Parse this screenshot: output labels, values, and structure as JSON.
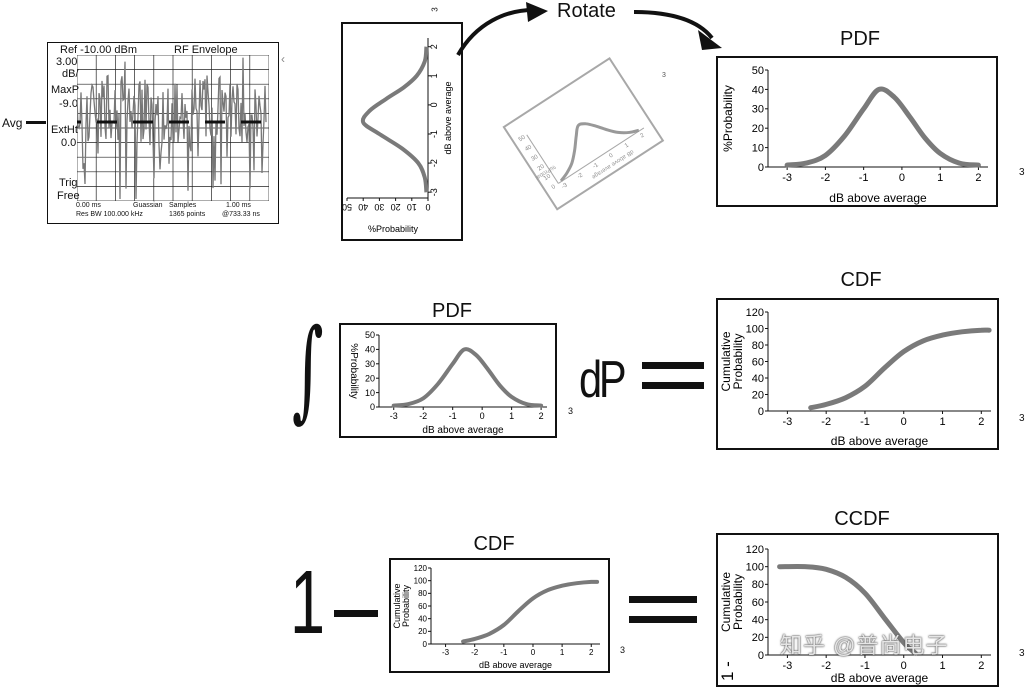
{
  "analyzer": {
    "ref": "Ref -10.00 dBm",
    "mode": "RF Envelope",
    "scale1": "3.00",
    "scale2": "dB/",
    "maxp": "MaxP",
    "maxp_val": "-9.0",
    "extht": "ExtHt",
    "extht_val": "0.0",
    "trig": "Trig",
    "trig_val": "Free",
    "start": "0.00 ms",
    "dist": "Guassian",
    "samples": "Samples",
    "stop": "1.00 ms",
    "rbw": "Res BW 100.000 kHz",
    "points": "1365 points",
    "at": "@733.33 ns",
    "avg_label": "Avg"
  },
  "rotate_label": "Rotate",
  "vertical_plot": {
    "xlabel": "%Probability",
    "ylabel": "dB above average",
    "x_ticks": [
      "50",
      "40",
      "30",
      "20",
      "10",
      "0"
    ],
    "y_ticks": [
      "2",
      "1",
      "0",
      "-1",
      "-2",
      "-3"
    ],
    "corner_tick": "3"
  },
  "rotated_plot": {
    "xlabel": "%Probability",
    "ylabel": "dB above average",
    "x_ticks": [
      "50",
      "40",
      "30",
      "20",
      "10",
      "0"
    ],
    "y_ticks": [
      "-3",
      "-2",
      "-1",
      "0",
      "1",
      "2"
    ],
    "corner_tick": "3"
  },
  "pdf_top": {
    "title": "PDF",
    "ylabel": "%Probability",
    "xlabel": "dB above average",
    "y_ticks": [
      "50",
      "40",
      "30",
      "20",
      "10",
      "0"
    ],
    "x_ticks": [
      "-3",
      "-2",
      "-1",
      "0",
      "1",
      "2"
    ],
    "extra_tick": "3"
  },
  "pdf_mid": {
    "title": "PDF",
    "ylabel": "%Probability",
    "xlabel": "dB above average",
    "y_ticks": [
      "50",
      "40",
      "30",
      "20",
      "10",
      "0"
    ],
    "x_ticks": [
      "-3",
      "-2",
      "-1",
      "0",
      "1",
      "2"
    ],
    "extra_tick": "3"
  },
  "integral_symbol": "∫",
  "dp_label": "dP",
  "cdf_mid": {
    "title": "CDF",
    "ylabel1": "Cumulative",
    "ylabel2": "Probability",
    "xlabel": "dB above average",
    "y_ticks": [
      "120",
      "100",
      "80",
      "60",
      "40",
      "20",
      "0"
    ],
    "x_ticks": [
      "-3",
      "-2",
      "-1",
      "0",
      "1",
      "2"
    ],
    "extra_tick": "3"
  },
  "one_label": "1",
  "minus_label": "−",
  "cdf_bot": {
    "title": "CDF",
    "ylabel1": "Cumulative",
    "ylabel2": "Probability",
    "xlabel": "dB above average",
    "y_ticks": [
      "120",
      "100",
      "80",
      "60",
      "40",
      "20",
      "0"
    ],
    "x_ticks": [
      "-3",
      "-2",
      "-1",
      "0",
      "1",
      "2"
    ],
    "extra_tick": "3"
  },
  "ccdf": {
    "title": "CCDF",
    "ylabel1": "Cumulative",
    "ylabel2": "Probability",
    "ylabel_prefix": "1 -",
    "xlabel": "dB above average",
    "y_ticks": [
      "120",
      "100",
      "80",
      "60",
      "40",
      "20",
      "0"
    ],
    "x_ticks": [
      "-3",
      "-2",
      "-1",
      "0",
      "1",
      "2"
    ],
    "extra_tick": "3"
  },
  "watermark": "知乎 @普尚电子",
  "colors": {
    "curve": "#7a7a7a",
    "frame": "#111111",
    "rotated_frame": "#a8a8a8"
  },
  "chart_data": [
    {
      "type": "line",
      "title": "PDF",
      "xlabel": "dB above average",
      "ylabel": "%Probability",
      "x": [
        -3.0,
        -2.5,
        -2.0,
        -1.5,
        -1.0,
        -0.6,
        -0.2,
        0.2,
        0.6,
        1.0,
        1.5,
        2.0
      ],
      "y": [
        1,
        2,
        6,
        16,
        30,
        40,
        36,
        26,
        15,
        7,
        2,
        1
      ],
      "xlim": [
        -3.5,
        3
      ],
      "ylim": [
        0,
        50
      ]
    },
    {
      "type": "line",
      "title": "CDF",
      "xlabel": "dB above average",
      "ylabel": "Cumulative Probability",
      "x": [
        -2.4,
        -2.0,
        -1.5,
        -1.0,
        -0.5,
        0.0,
        0.5,
        1.0,
        1.5,
        2.0,
        2.2
      ],
      "y": [
        4,
        8,
        16,
        30,
        52,
        72,
        85,
        92,
        96,
        98,
        98
      ],
      "xlim": [
        -3.5,
        2.3
      ],
      "ylim": [
        0,
        120
      ]
    },
    {
      "type": "line",
      "title": "CCDF",
      "xlabel": "dB above average",
      "ylabel": "1 - Cumulative Probability",
      "x": [
        -3.2,
        -2.5,
        -2.0,
        -1.5,
        -1.0,
        -0.5,
        0.0,
        0.3
      ],
      "y": [
        100,
        100,
        97,
        88,
        70,
        42,
        14,
        2
      ],
      "xlim": [
        -3.5,
        2.3
      ],
      "ylim": [
        0,
        120
      ]
    }
  ]
}
